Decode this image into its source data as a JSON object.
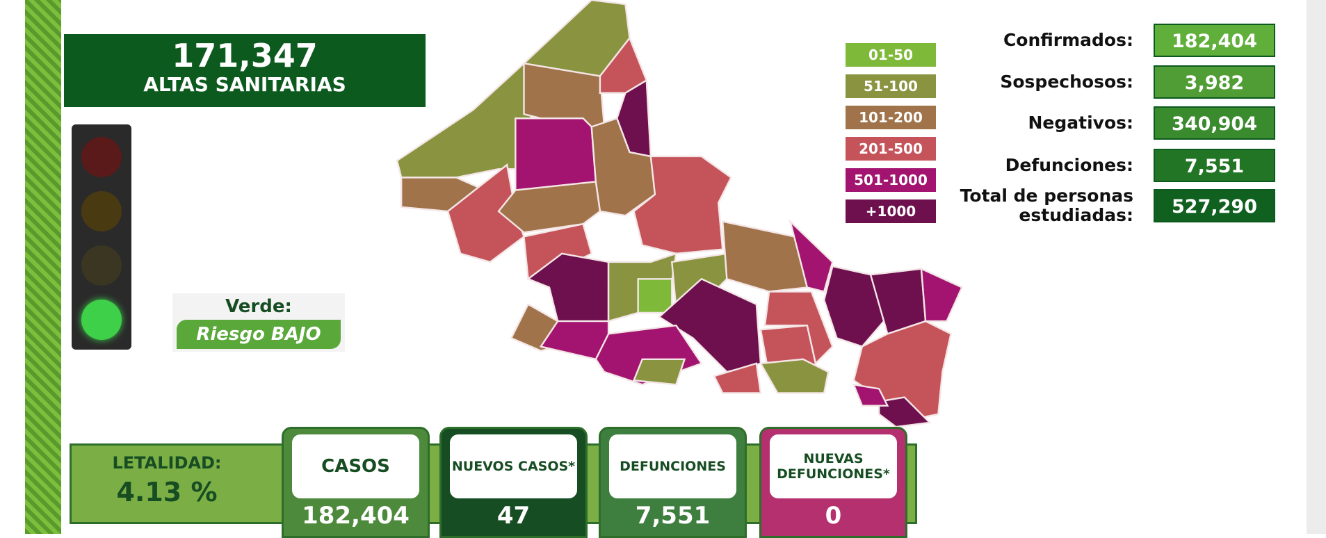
{
  "header": {
    "value": "171,347",
    "label": "ALTAS SANITARIAS"
  },
  "semaforo": {
    "title": "Verde:",
    "risk": "Riesgo BAJO"
  },
  "legend": [
    {
      "label": "01-50",
      "color": "#7fb93a"
    },
    {
      "label": "51-100",
      "color": "#8a9440"
    },
    {
      "label": "101-200",
      "color": "#a0734a"
    },
    {
      "label": "201-500",
      "color": "#c5535a"
    },
    {
      "label": "501-1000",
      "color": "#a2146f"
    },
    {
      "label": "+1000",
      "color": "#6e0f4e"
    }
  ],
  "stats": [
    {
      "label": "Confirmados:",
      "value": "182,404",
      "color": "#5faf3a"
    },
    {
      "label": "Sospechosos:",
      "value": "3,982",
      "color": "#4f9d34"
    },
    {
      "label": "Negativos:",
      "value": "340,904",
      "color": "#3a8a2e"
    },
    {
      "label": "Defunciones:",
      "value": "7,551",
      "color": "#237526"
    },
    {
      "label": "Total de personas estudiadas:",
      "value": "527,290",
      "color": "#10601f"
    }
  ],
  "letalidad": {
    "label": "LETALIDAD:",
    "value": "4.13 %"
  },
  "cards": [
    {
      "title": "CASOS",
      "value": "182,404",
      "color": "#4e8a3c"
    },
    {
      "title": "NUEVOS CASOS*",
      "value": "47",
      "color": "#174d22"
    },
    {
      "title": "DEFUNCIONES",
      "value": "7,551",
      "color": "#3e7e3e"
    },
    {
      "title": "NUEVAS DEFUNCIONES*",
      "value": "0",
      "color": "#b5306e"
    }
  ]
}
